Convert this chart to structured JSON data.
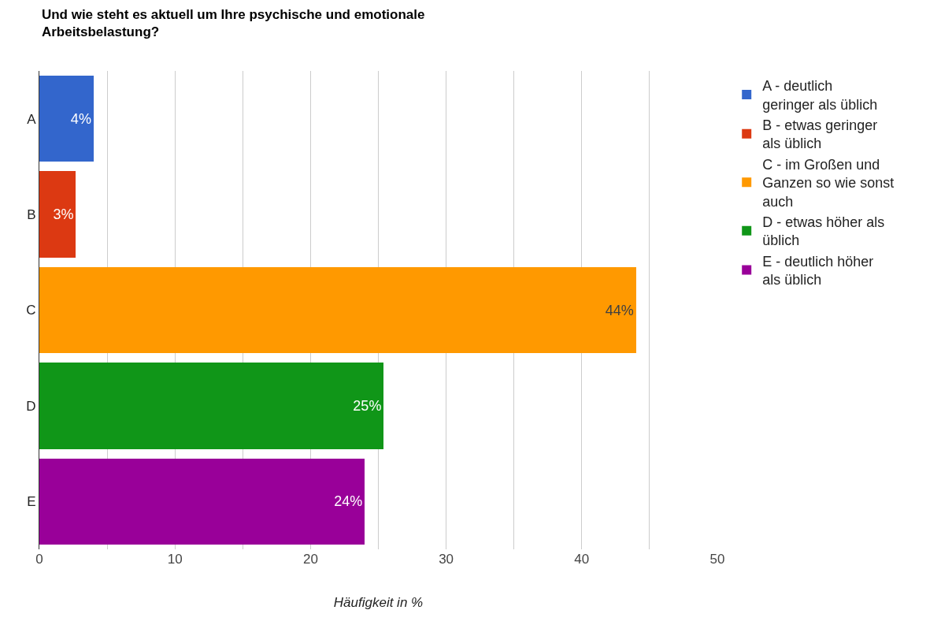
{
  "chart_data": {
    "type": "bar",
    "orientation": "horizontal",
    "stacked": true,
    "title": "Und wie steht es aktuell um Ihre psychische und emotionale\nArbeitsbelastung?",
    "xlabel": "Häufigkeit in %",
    "categories": [
      "A",
      "B",
      "C",
      "D",
      "E"
    ],
    "series": [
      {
        "name": "A - deutlich geringer als üblich",
        "color": "#3366cc",
        "values": [
          4.0,
          null,
          null,
          null,
          null
        ],
        "value_labels": [
          "4%",
          null,
          null,
          null,
          null
        ]
      },
      {
        "name": "B - etwas geringer als üblich",
        "color": "#dc3912",
        "values": [
          null,
          2.7,
          null,
          null,
          null
        ],
        "value_labels": [
          null,
          "3%",
          null,
          null,
          null
        ]
      },
      {
        "name": "C - im Großen und Ganzen so wie sonst auch",
        "color": "#ff9900",
        "values": [
          null,
          null,
          44.0,
          null,
          null
        ],
        "value_labels": [
          null,
          null,
          "44%",
          null,
          null
        ]
      },
      {
        "name": "D - etwas höher als üblich",
        "color": "#109618",
        "values": [
          null,
          null,
          null,
          25.4,
          null
        ],
        "value_labels": [
          null,
          null,
          null,
          "25%",
          null
        ]
      },
      {
        "name": "E - deutlich höher als üblich",
        "color": "#990099",
        "values": [
          null,
          null,
          null,
          null,
          24.0
        ],
        "value_labels": [
          null,
          null,
          null,
          null,
          "24%"
        ]
      }
    ],
    "xlim": [
      0,
      50
    ],
    "xticks": [
      0,
      {
        "value": 5,
        "label": null
      },
      10,
      {
        "value": 15,
        "label": null
      },
      20,
      {
        "value": 25,
        "label": null
      },
      30,
      {
        "value": 35,
        "label": null
      },
      40,
      {
        "value": 45,
        "label": null
      },
      50
    ],
    "grid": "x",
    "legend": "right"
  }
}
